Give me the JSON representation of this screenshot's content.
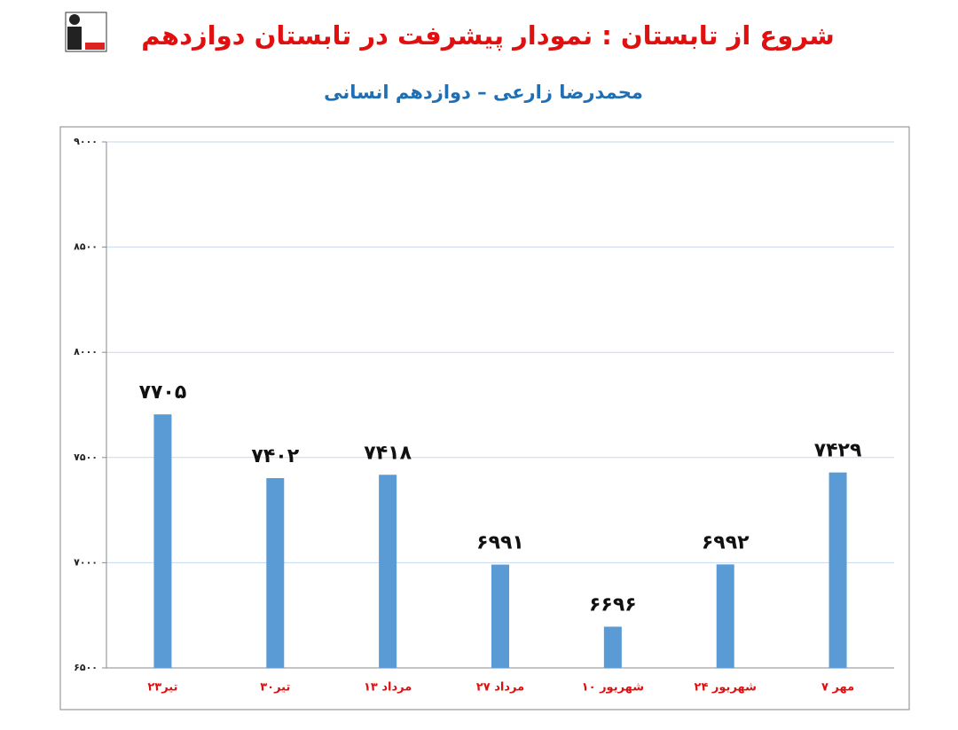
{
  "chart_data": {
    "type": "bar",
    "title": "شروع از تابستان : نمودار پیشرفت در تابستان دوازدهم",
    "subtitle": "محمدرضا زارعی – دوازدهم انسانی",
    "categories": [
      "۲۳تیر",
      "۳۰تیر",
      "۱۳ مرداد",
      "۲۷ مرداد",
      "۱۰ شهریور",
      "۲۴ شهریور",
      "۷ مهر"
    ],
    "values": [
      7705,
      7402,
      7418,
      6991,
      6696,
      6992,
      7429
    ],
    "value_labels": [
      "۷۷۰۵",
      "۷۴۰۲",
      "۷۴۱۸",
      "۶۹۹۱",
      "۶۶۹۶",
      "۶۹۹۲",
      "۷۴۲۹"
    ],
    "color": "#5b9bd5",
    "ylim": [
      6500,
      9000
    ],
    "yticks": [
      {
        "value": 6500,
        "label": "۶۵۰۰"
      },
      {
        "value": 7000,
        "label": "۷۰۰۰"
      },
      {
        "value": 7500,
        "label": "۷۵۰۰"
      },
      {
        "value": 8000,
        "label": "۸۰۰۰"
      },
      {
        "value": 8500,
        "label": "۸۵۰۰"
      },
      {
        "value": 9000,
        "label": "۹۰۰۰"
      }
    ],
    "grid": true
  }
}
